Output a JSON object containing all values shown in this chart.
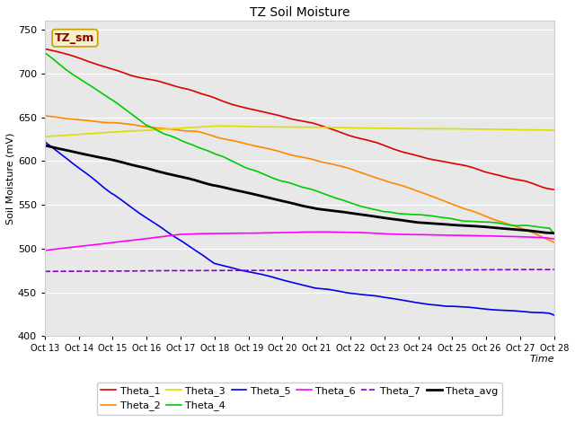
{
  "title": "TZ Soil Moisture",
  "xlabel": "Time",
  "ylabel": "Soil Moisture (mV)",
  "ylim": [
    400,
    760
  ],
  "yticks": [
    400,
    450,
    500,
    550,
    600,
    650,
    700,
    750
  ],
  "background_color": "#e8e8e8",
  "legend_label": "TZ_sm",
  "legend_label_color": "#8B0000",
  "legend_box_facecolor": "#f5f0c8",
  "legend_box_edgecolor": "#c8a000",
  "series_order": [
    "Theta_1",
    "Theta_2",
    "Theta_3",
    "Theta_4",
    "Theta_5",
    "Theta_6",
    "Theta_7",
    "Theta_avg"
  ],
  "series": {
    "Theta_1": {
      "color": "#dd0000",
      "lw": 1.2
    },
    "Theta_2": {
      "color": "#ff8800",
      "lw": 1.2
    },
    "Theta_3": {
      "color": "#dddd00",
      "lw": 1.2
    },
    "Theta_4": {
      "color": "#00cc00",
      "lw": 1.2
    },
    "Theta_5": {
      "color": "#0000ee",
      "lw": 1.2
    },
    "Theta_6": {
      "color": "#ff00ff",
      "lw": 1.2
    },
    "Theta_7": {
      "color": "#8800cc",
      "lw": 1.2
    },
    "Theta_avg": {
      "color": "#000000",
      "lw": 2.0
    }
  },
  "x_tick_labels": [
    "Oct 13",
    "Oct 14",
    "Oct 15",
    "Oct 16",
    "Oct 17",
    "Oct 18",
    "Oct 19",
    "Oct 20",
    "Oct 21",
    "Oct 22",
    "Oct 23",
    "Oct 24",
    "Oct 25",
    "Oct 26",
    "Oct 27",
    "Oct 28"
  ],
  "figsize": [
    6.4,
    4.8
  ],
  "dpi": 100
}
